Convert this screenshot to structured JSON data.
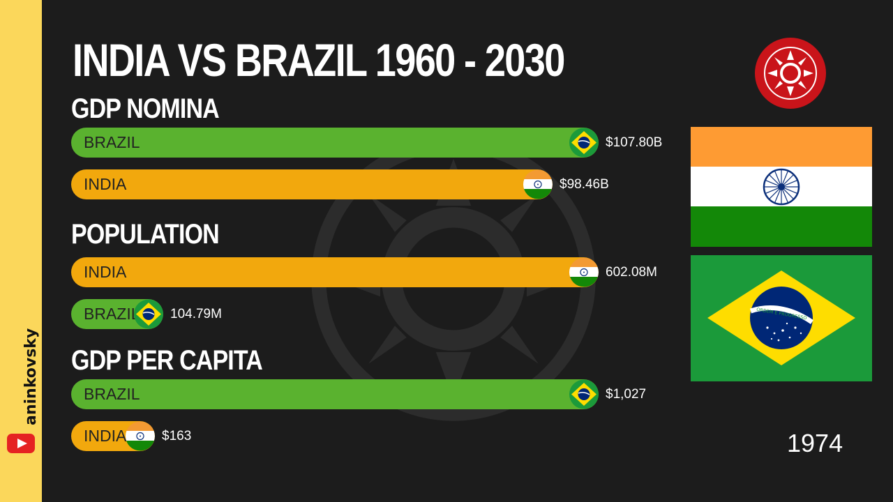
{
  "title": "INDIA VS BRAZIL 1960 - 2030",
  "channel": {
    "name": "aninkovsky",
    "icon": "youtube-icon"
  },
  "year": "1974",
  "colors": {
    "brazil": "#5ab22f",
    "india": "#f2a80d",
    "background": "#1c1c1c",
    "sidebar": "#fbd75b"
  },
  "chart_data": [
    {
      "type": "bar",
      "title": "GDP NOMINA",
      "categories": [
        "BRAZIL",
        "INDIA"
      ],
      "values": [
        107.8,
        98.46
      ],
      "value_labels": [
        "$107.80B",
        "$98.46B"
      ],
      "unit": "billion USD",
      "max": 107.8
    },
    {
      "type": "bar",
      "title": "POPULATION",
      "categories": [
        "INDIA",
        "BRAZIL"
      ],
      "values": [
        602.08,
        104.79
      ],
      "value_labels": [
        "602.08M",
        "104.79M"
      ],
      "unit": "million",
      "max": 602.08
    },
    {
      "type": "bar",
      "title": "GDP PER CAPITA",
      "categories": [
        "BRAZIL",
        "INDIA"
      ],
      "values": [
        1027,
        163
      ],
      "value_labels": [
        "$1,027",
        "$163"
      ],
      "unit": "USD",
      "max": 1027
    }
  ],
  "big_flags": [
    "india-flag",
    "brazil-flag"
  ],
  "brazil_flag_motto": "ORDEM E PROGRESSO"
}
